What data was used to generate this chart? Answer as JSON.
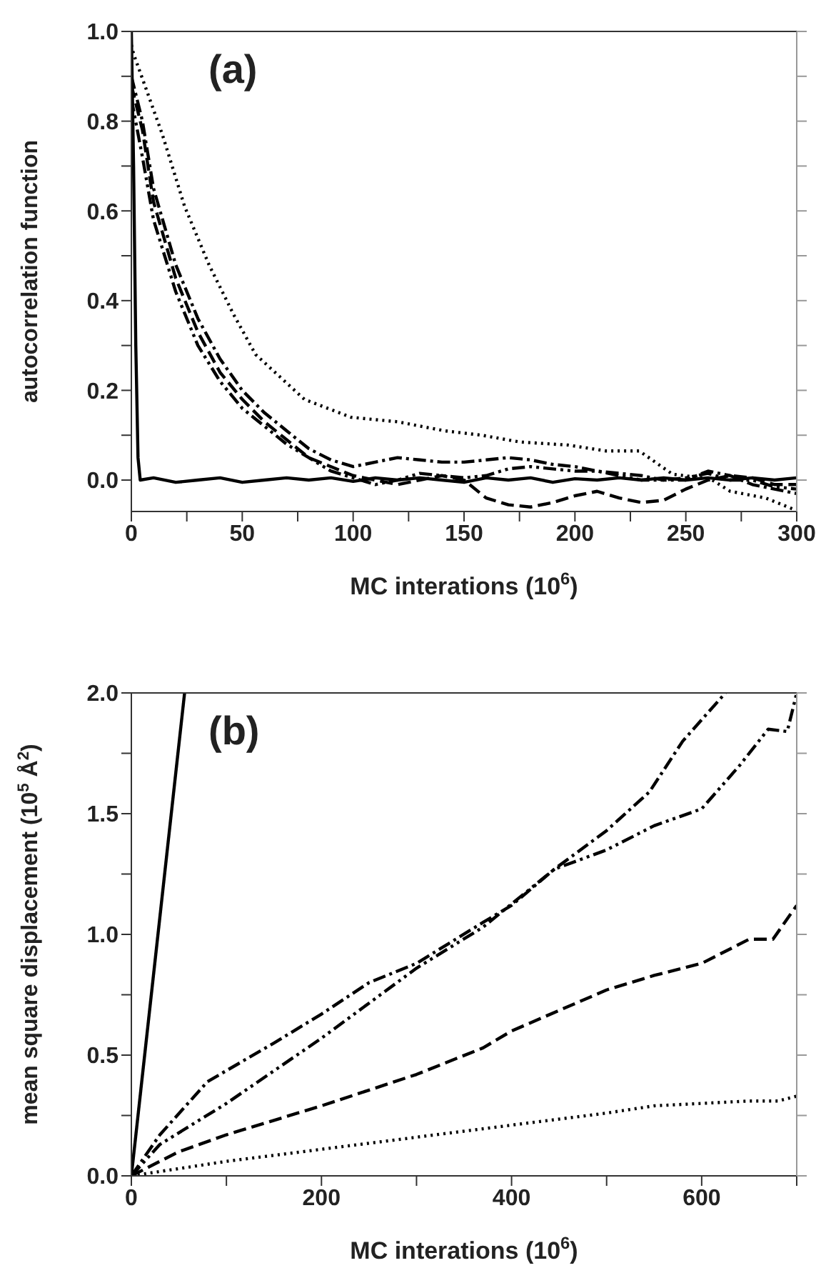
{
  "chart_data": [
    {
      "type": "line",
      "xlabel": "MC interations (10$^{6}$)",
      "ylabel": "autocorrelation function",
      "annotations": [
        "(a)"
      ],
      "xlim": [
        0,
        300
      ],
      "ylim": [
        -0.07,
        1.0
      ],
      "xticks": [
        0,
        {
          "value": 25,
          "label": null
        },
        50,
        {
          "value": 75,
          "label": null
        },
        100,
        {
          "value": 125,
          "label": null
        },
        150,
        {
          "value": 175,
          "label": null
        },
        200,
        {
          "value": 225,
          "label": null
        },
        250,
        {
          "value": 275,
          "label": null
        },
        300
      ],
      "yticks": [
        {
          "value": 0,
          "label": "0.0"
        },
        {
          "value": 0.1,
          "label": null
        },
        {
          "value": 0.2,
          "label": "0.2"
        },
        {
          "value": 0.3,
          "label": null
        },
        {
          "value": 0.4,
          "label": "0.4"
        },
        {
          "value": 0.5,
          "label": null
        },
        {
          "value": 0.6,
          "label": "0.6"
        },
        {
          "value": 0.7,
          "label": null
        },
        {
          "value": 0.8,
          "label": "0.8"
        },
        {
          "value": 0.9,
          "label": null
        },
        {
          "value": 1.0,
          "label": "1.0"
        }
      ],
      "marker": "none",
      "series": [
        {
          "color": "#000000",
          "line_style": "solid",
          "x": [
            0,
            1,
            2,
            3,
            4,
            10,
            20,
            30,
            40,
            50,
            60,
            70,
            80,
            90,
            100,
            110,
            120,
            130,
            140,
            150,
            160,
            170,
            180,
            190,
            200,
            210,
            220,
            230,
            240,
            250,
            260,
            270,
            280,
            290,
            300
          ],
          "values": [
            1.0,
            0.7,
            0.3,
            0.05,
            0.0,
            0.005,
            -0.005,
            0,
            0.005,
            -0.005,
            0,
            0.005,
            0,
            0.005,
            -0.003,
            0.005,
            0,
            0.005,
            0,
            -0.005,
            0.005,
            0,
            0.005,
            -0.005,
            0.003,
            0,
            0.005,
            0,
            0.005,
            0,
            0.005,
            0,
            0.005,
            0,
            0.005
          ]
        },
        {
          "color": "#000000",
          "line_style": "dotted",
          "x": [
            0,
            1,
            14,
            24,
            35,
            46,
            56,
            78,
            99,
            120,
            141,
            158,
            175,
            197,
            214,
            229,
            244,
            261,
            270,
            286,
            300
          ],
          "values": [
            0.97,
            0.95,
            0.77,
            0.61,
            0.48,
            0.37,
            0.28,
            0.18,
            0.14,
            0.13,
            0.11,
            0.1,
            0.085,
            0.078,
            0.065,
            0.065,
            0.013,
            0.003,
            -0.025,
            -0.04,
            -0.068
          ]
        },
        {
          "color": "#000000",
          "line_style": "dashed",
          "x": [
            0,
            5,
            10,
            20,
            30,
            40,
            50,
            60,
            70,
            80,
            90,
            100,
            110,
            120,
            130,
            140,
            150,
            160,
            170,
            180,
            190,
            200,
            210,
            220,
            230,
            240,
            250,
            260,
            270,
            280,
            290,
            300
          ],
          "values": [
            0.88,
            0.78,
            0.62,
            0.45,
            0.33,
            0.24,
            0.18,
            0.13,
            0.09,
            0.05,
            0.03,
            0.01,
            0,
            -0.01,
            0,
            0.01,
            0,
            -0.04,
            -0.055,
            -0.06,
            -0.05,
            -0.035,
            -0.025,
            -0.04,
            -0.05,
            -0.045,
            -0.02,
            0,
            0.01,
            0.005,
            -0.01,
            -0.01
          ]
        },
        {
          "color": "#000000",
          "line_style": "dashdot",
          "x": [
            0,
            5,
            10,
            20,
            30,
            40,
            50,
            60,
            70,
            80,
            90,
            100,
            110,
            120,
            130,
            140,
            150,
            160,
            170,
            180,
            190,
            200,
            210,
            220,
            230,
            240,
            250,
            260,
            270,
            280,
            290,
            300
          ],
          "values": [
            0.9,
            0.8,
            0.65,
            0.48,
            0.36,
            0.27,
            0.2,
            0.15,
            0.11,
            0.07,
            0.045,
            0.03,
            0.04,
            0.05,
            0.045,
            0.04,
            0.04,
            0.045,
            0.05,
            0.045,
            0.035,
            0.03,
            0.02,
            0.015,
            0.01,
            0,
            0,
            0.02,
            0.01,
            -0.01,
            -0.02,
            -0.03
          ]
        },
        {
          "color": "#000000",
          "line_style": "dashdotdot",
          "x": [
            0,
            5,
            10,
            20,
            30,
            40,
            50,
            60,
            70,
            80,
            90,
            100,
            110,
            120,
            130,
            140,
            150,
            160,
            170,
            180,
            190,
            200,
            210,
            220,
            230,
            240,
            250,
            260,
            270,
            280,
            290,
            300
          ],
          "values": [
            0.85,
            0.72,
            0.58,
            0.42,
            0.3,
            0.22,
            0.16,
            0.12,
            0.08,
            0.05,
            0.02,
            0.005,
            -0.01,
            0,
            0.015,
            0.01,
            0.005,
            0.01,
            0.025,
            0.03,
            0.025,
            0.02,
            0.02,
            0.01,
            0,
            0,
            0.005,
            0.015,
            0,
            0,
            -0.015,
            -0.02
          ]
        }
      ]
    },
    {
      "type": "line",
      "xlabel": "MC interations (10$^{6}$)",
      "ylabel": "mean square displacement (10$^{5}$ Å$^{2}$)",
      "annotations": [
        "(b)"
      ],
      "xlim": [
        0,
        700
      ],
      "ylim": [
        0,
        2.0
      ],
      "xticks": [
        0,
        {
          "value": 100,
          "label": null
        },
        200,
        {
          "value": 300,
          "label": null
        },
        400,
        {
          "value": 500,
          "label": null
        },
        600,
        {
          "value": 700,
          "label": null
        }
      ],
      "yticks": [
        {
          "value": 0,
          "label": "0.0"
        },
        {
          "value": 0.25,
          "label": null
        },
        {
          "value": 0.5,
          "label": "0.5"
        },
        {
          "value": 0.75,
          "label": null
        },
        {
          "value": 1.0,
          "label": "1.0"
        },
        {
          "value": 1.25,
          "label": null
        },
        {
          "value": 1.5,
          "label": "1.5"
        },
        {
          "value": 1.75,
          "label": null
        },
        {
          "value": 2.0,
          "label": "2.0"
        }
      ],
      "marker": "none",
      "series": [
        {
          "color": "#000000",
          "line_style": "solid",
          "x": [
            0,
            56
          ],
          "values": [
            0,
            2.0
          ]
        },
        {
          "color": "#000000",
          "line_style": "dotted",
          "x": [
            0,
            50,
            100,
            200,
            300,
            400,
            500,
            550,
            600,
            650,
            680,
            700
          ],
          "values": [
            0,
            0.03,
            0.06,
            0.11,
            0.16,
            0.21,
            0.26,
            0.29,
            0.3,
            0.31,
            0.31,
            0.33
          ]
        },
        {
          "color": "#000000",
          "line_style": "dashed",
          "x": [
            0,
            50,
            100,
            200,
            300,
            370,
            400,
            500,
            550,
            600,
            650,
            675,
            700
          ],
          "values": [
            0,
            0.1,
            0.17,
            0.29,
            0.42,
            0.53,
            0.6,
            0.77,
            0.83,
            0.88,
            0.98,
            0.98,
            1.12
          ]
        },
        {
          "color": "#000000",
          "line_style": "dashdot",
          "x": [
            0,
            30,
            80,
            150,
            200,
            250,
            300,
            370,
            400,
            445,
            500,
            545,
            580,
            625
          ],
          "values": [
            0,
            0.17,
            0.39,
            0.55,
            0.67,
            0.8,
            0.88,
            1.05,
            1.12,
            1.27,
            1.43,
            1.59,
            1.8,
            2.0
          ]
        },
        {
          "color": "#000000",
          "line_style": "dashdotdot",
          "x": [
            0,
            30,
            100,
            200,
            300,
            370,
            445,
            500,
            550,
            600,
            640,
            670,
            690,
            700
          ],
          "values": [
            0,
            0.13,
            0.3,
            0.57,
            0.86,
            1.03,
            1.27,
            1.35,
            1.45,
            1.52,
            1.7,
            1.85,
            1.84,
            2.0
          ]
        }
      ]
    }
  ]
}
